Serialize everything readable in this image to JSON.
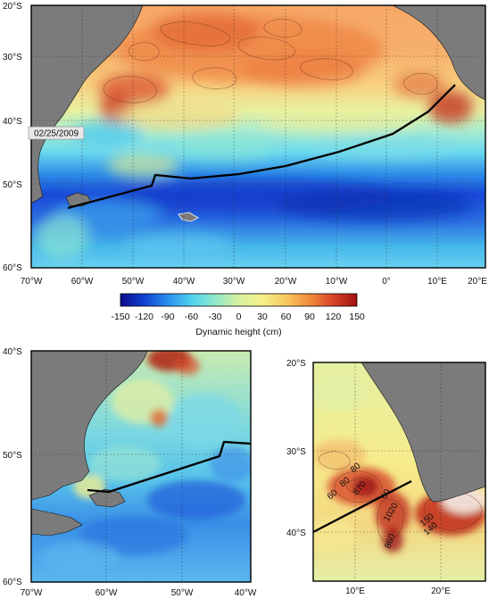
{
  "date_label": "02/25/2009",
  "colorbar": {
    "ticks": [
      "-150",
      "-120",
      "-90",
      "-60",
      "-30",
      "0",
      "30",
      "60",
      "90",
      "120",
      "150"
    ],
    "label": "Dynamic height (cm)",
    "min": -150,
    "max": 150,
    "colors": [
      "#0a0a8c",
      "#1040d0",
      "#2a8ff0",
      "#4fd2f0",
      "#8fe8c8",
      "#d8f0a0",
      "#f5f08a",
      "#f9c860",
      "#f08a3a",
      "#d8442a",
      "#a01010"
    ]
  },
  "main_map": {
    "lat_labels": [
      "20°S",
      "30°S",
      "40°S",
      "50°S",
      "60°S"
    ],
    "lon_labels": [
      "70°W",
      "60°W",
      "50°W",
      "40°W",
      "30°W",
      "20°W",
      "10°W",
      "0°",
      "10°E",
      "20°E"
    ]
  },
  "inset_left": {
    "lat_labels": [
      "40°S",
      "50°S",
      "60°S"
    ],
    "lon_labels": [
      "70°W",
      "60°W",
      "50°W",
      "40°W"
    ]
  },
  "inset_right": {
    "lat_labels": [
      "20°S",
      "30°S",
      "40°S"
    ],
    "lon_labels": [
      "10°E",
      "20°E"
    ],
    "contour_labels": [
      "80",
      "60",
      "80",
      "870",
      "60",
      "1020",
      "860",
      "150",
      "140"
    ]
  }
}
